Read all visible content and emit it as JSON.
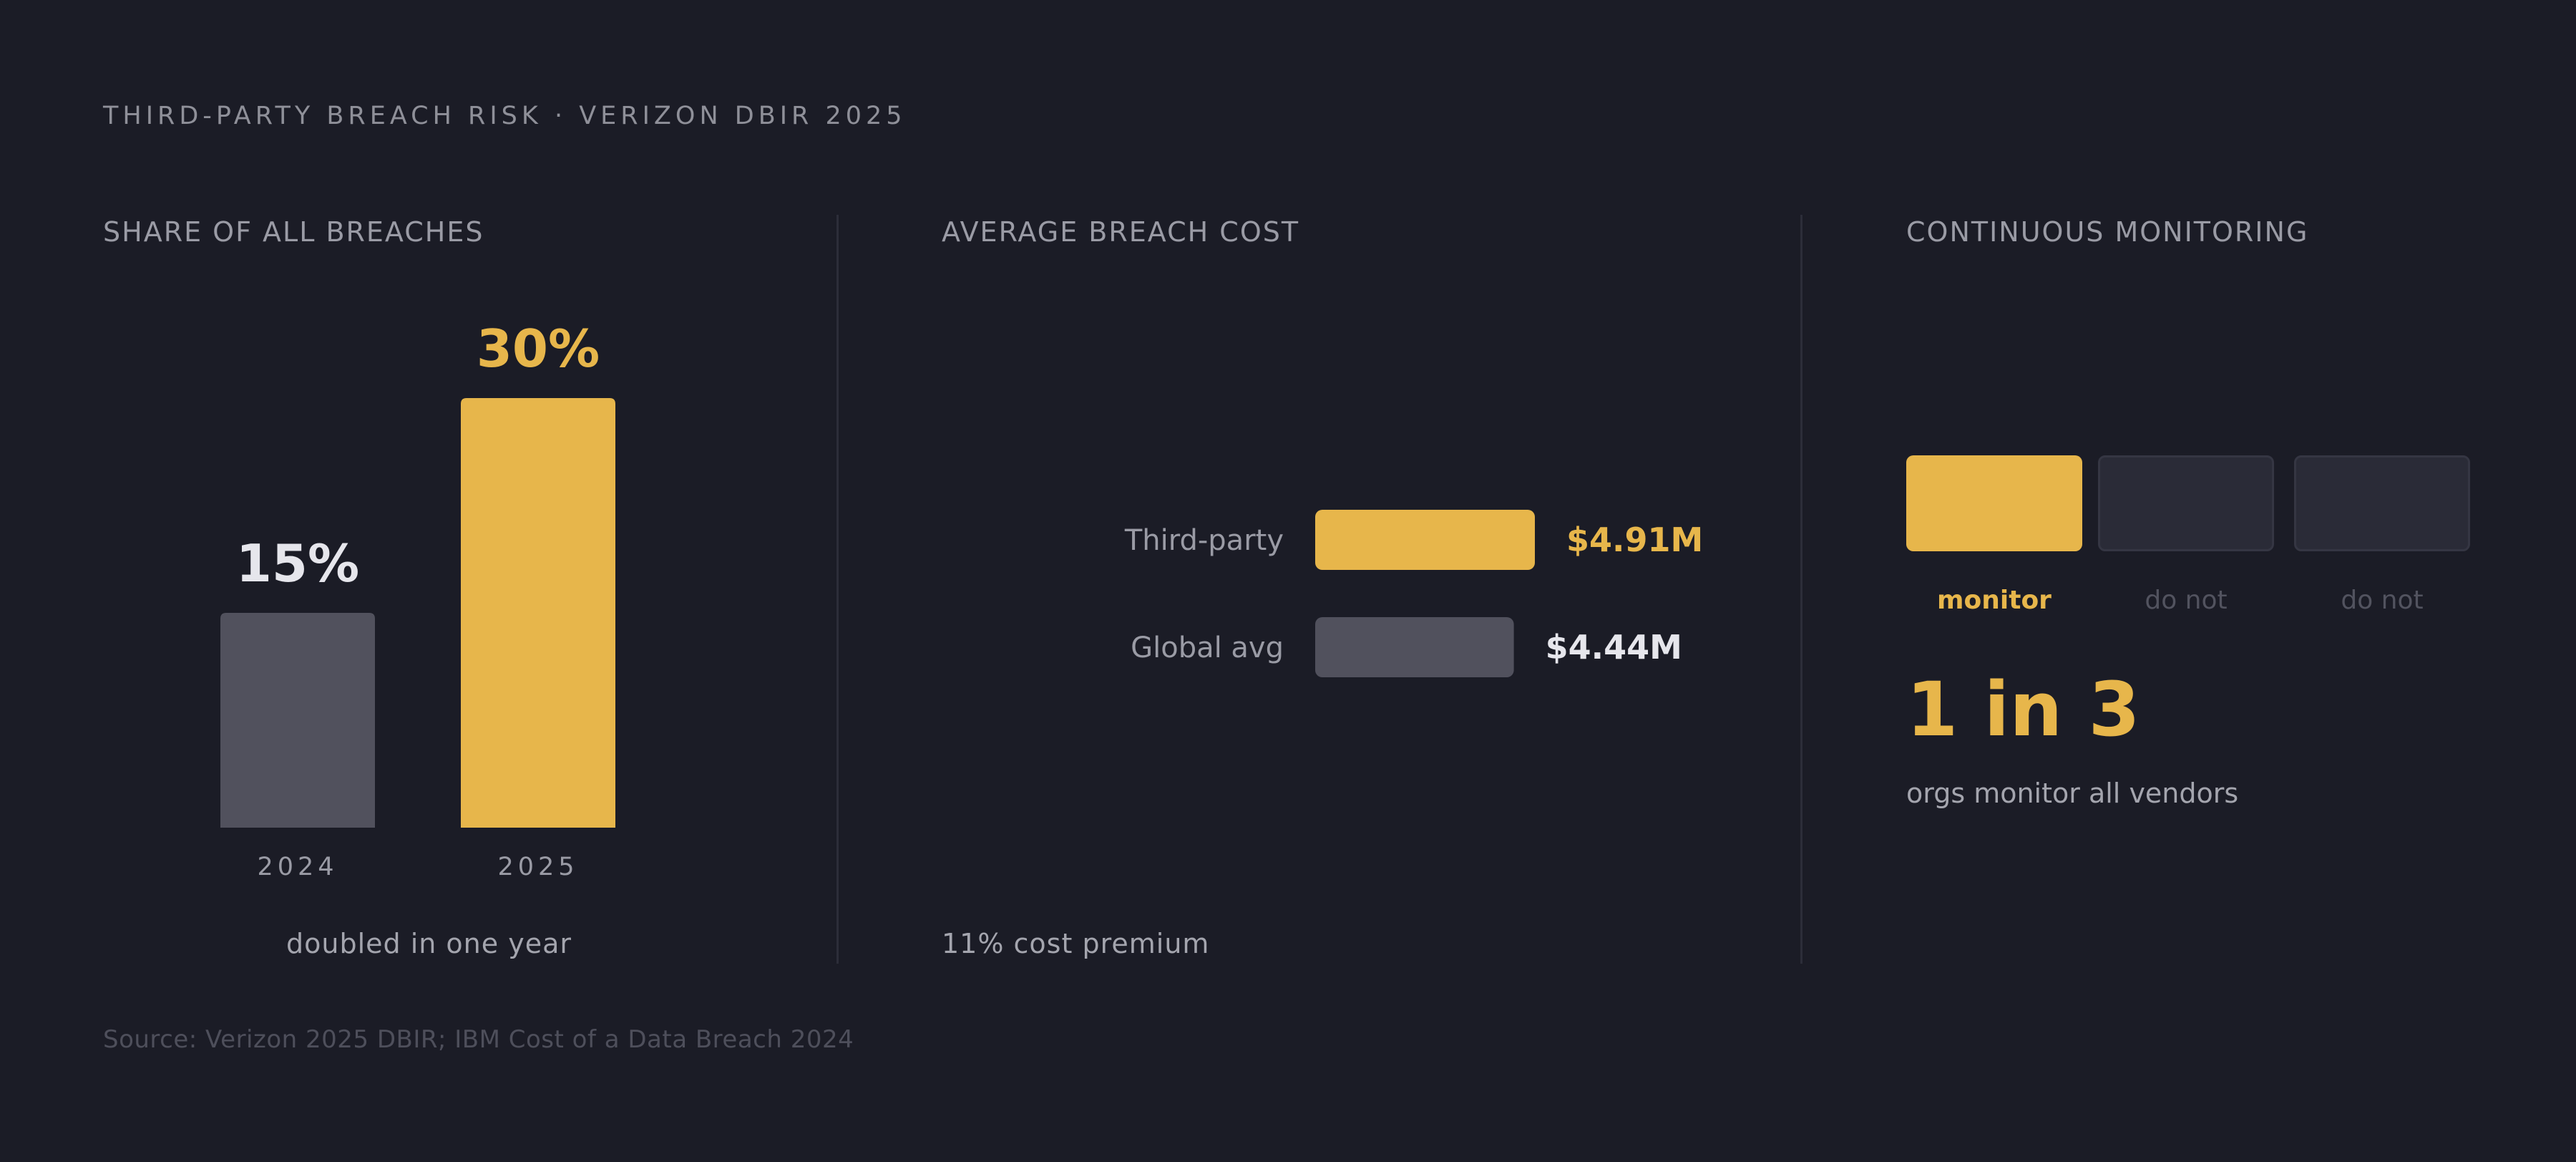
{
  "header": {
    "kicker": "THIRD-PARTY BREACH RISK · VERIZON DBIR 2025"
  },
  "colors": {
    "accent": "#e7b64b",
    "muted_bar": "#51515d",
    "background": "#1b1c26",
    "text_light": "#e6e6ec"
  },
  "panels": [
    {
      "title": "SHARE OF ALL BREACHES",
      "footnote": "doubled in one year"
    },
    {
      "title": "AVERAGE BREACH COST",
      "footnote": "11% cost premium"
    },
    {
      "title": "CONTINUOUS MONITORING"
    }
  ],
  "chart_data": [
    {
      "type": "bar",
      "title": "SHARE OF ALL BREACHES",
      "categories": [
        "2024",
        "2025"
      ],
      "values": [
        15,
        30
      ],
      "value_labels": [
        "15%",
        "30%"
      ],
      "ylim": [
        0,
        30
      ],
      "highlight": "2025"
    },
    {
      "type": "bar",
      "orientation": "horizontal",
      "title": "AVERAGE BREACH COST",
      "categories": [
        "Third-party",
        "Global avg"
      ],
      "values": [
        4.91,
        4.44
      ],
      "value_labels": [
        "$4.91M",
        "$4.44M"
      ],
      "unit": "$M",
      "highlight": "Third-party"
    }
  ],
  "monitoring": {
    "boxes": [
      {
        "label": "monitor",
        "active": true
      },
      {
        "label": "do not",
        "active": false
      },
      {
        "label": "do not",
        "active": false
      }
    ],
    "stat": "1 in 3",
    "caption": "orgs monitor all vendors"
  },
  "source": "Source: Verizon 2025 DBIR; IBM Cost of a Data Breach 2024"
}
